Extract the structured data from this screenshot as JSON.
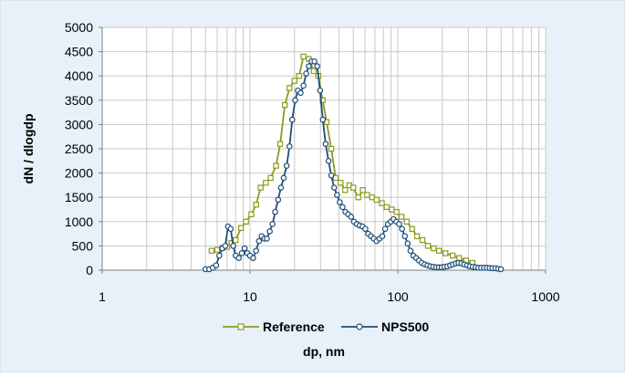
{
  "chart_data": {
    "type": "line",
    "title": "",
    "xlabel": "dp, nm",
    "ylabel": "dN / dlogdp",
    "xscale": "log",
    "xlim": [
      1,
      1000
    ],
    "ylim": [
      0,
      5000
    ],
    "x_tick_labels": [
      "1",
      "10",
      "100",
      "1000"
    ],
    "y_tick_labels": [
      "0",
      "500",
      "1000",
      "1500",
      "2000",
      "2500",
      "3000",
      "3500",
      "4000",
      "4500",
      "5000"
    ],
    "grid": true,
    "legend_position": "bottom",
    "background_color": "#e8f1f9",
    "series": [
      {
        "name": "Reference",
        "color": "#8c9a1e",
        "marker": "square",
        "points": [
          [
            5.5,
            400
          ],
          [
            6.0,
            420
          ],
          [
            6.5,
            460
          ],
          [
            7.0,
            480
          ],
          [
            7.5,
            560
          ],
          [
            8.0,
            620
          ],
          [
            8.7,
            870
          ],
          [
            9.4,
            1000
          ],
          [
            10.2,
            1150
          ],
          [
            11.0,
            1350
          ],
          [
            11.8,
            1700
          ],
          [
            12.8,
            1800
          ],
          [
            13.8,
            1900
          ],
          [
            15.0,
            2150
          ],
          [
            16.0,
            2600
          ],
          [
            17.2,
            3400
          ],
          [
            18.5,
            3750
          ],
          [
            20.0,
            3900
          ],
          [
            21.5,
            4000
          ],
          [
            23.0,
            4400
          ],
          [
            25.0,
            4350
          ],
          [
            27.0,
            4100
          ],
          [
            29.0,
            4000
          ],
          [
            31.0,
            3500
          ],
          [
            33.0,
            3050
          ],
          [
            35.5,
            2500
          ],
          [
            38.0,
            1900
          ],
          [
            41.0,
            1800
          ],
          [
            44.0,
            1650
          ],
          [
            47.0,
            1750
          ],
          [
            50.0,
            1700
          ],
          [
            54.0,
            1500
          ],
          [
            58.0,
            1650
          ],
          [
            62.0,
            1550
          ],
          [
            67.0,
            1500
          ],
          [
            72.0,
            1450
          ],
          [
            78.0,
            1380
          ],
          [
            84.0,
            1300
          ],
          [
            91.0,
            1250
          ],
          [
            98.0,
            1200
          ],
          [
            106.0,
            1100
          ],
          [
            115.0,
            1000
          ],
          [
            125.0,
            850
          ],
          [
            135.0,
            700
          ],
          [
            147.0,
            620
          ],
          [
            160.0,
            500
          ],
          [
            175.0,
            450
          ],
          [
            190.0,
            400
          ],
          [
            210.0,
            350
          ],
          [
            235.0,
            300
          ],
          [
            260.0,
            250
          ],
          [
            290.0,
            200
          ],
          [
            320.0,
            150
          ]
        ]
      },
      {
        "name": "NPS500",
        "color": "#1f4e79",
        "marker": "circle",
        "points": [
          [
            5.0,
            20
          ],
          [
            5.3,
            20
          ],
          [
            5.6,
            50
          ],
          [
            5.9,
            100
          ],
          [
            6.2,
            300
          ],
          [
            6.5,
            450
          ],
          [
            6.8,
            500
          ],
          [
            7.1,
            900
          ],
          [
            7.4,
            850
          ],
          [
            7.7,
            500
          ],
          [
            8.0,
            300
          ],
          [
            8.4,
            250
          ],
          [
            8.8,
            350
          ],
          [
            9.2,
            450
          ],
          [
            9.6,
            350
          ],
          [
            10.0,
            300
          ],
          [
            10.5,
            250
          ],
          [
            11.0,
            400
          ],
          [
            11.5,
            600
          ],
          [
            12.0,
            700
          ],
          [
            12.5,
            650
          ],
          [
            13.0,
            650
          ],
          [
            13.6,
            800
          ],
          [
            14.2,
            950
          ],
          [
            14.8,
            1200
          ],
          [
            15.5,
            1450
          ],
          [
            16.2,
            1700
          ],
          [
            16.9,
            1900
          ],
          [
            17.7,
            2150
          ],
          [
            18.5,
            2550
          ],
          [
            19.3,
            3100
          ],
          [
            20.2,
            3500
          ],
          [
            21.1,
            3700
          ],
          [
            22.0,
            3650
          ],
          [
            23.0,
            3800
          ],
          [
            24.0,
            4050
          ],
          [
            25.0,
            4200
          ],
          [
            26.1,
            4300
          ],
          [
            27.3,
            4300
          ],
          [
            28.5,
            4200
          ],
          [
            29.8,
            3700
          ],
          [
            31.1,
            3100
          ],
          [
            32.5,
            2600
          ],
          [
            34.0,
            2250
          ],
          [
            35.5,
            1950
          ],
          [
            37.1,
            1700
          ],
          [
            38.8,
            1550
          ],
          [
            40.5,
            1400
          ],
          [
            42.3,
            1300
          ],
          [
            44.2,
            1200
          ],
          [
            46.2,
            1150
          ],
          [
            48.3,
            1100
          ],
          [
            50.5,
            1000
          ],
          [
            52.8,
            950
          ],
          [
            55.2,
            920
          ],
          [
            57.7,
            900
          ],
          [
            60.3,
            850
          ],
          [
            63.0,
            750
          ],
          [
            65.8,
            700
          ],
          [
            68.8,
            650
          ],
          [
            71.9,
            600
          ],
          [
            75.1,
            650
          ],
          [
            78.5,
            700
          ],
          [
            82.0,
            850
          ],
          [
            85.7,
            950
          ],
          [
            89.6,
            1000
          ],
          [
            93.6,
            1050
          ],
          [
            97.8,
            1000
          ],
          [
            102.2,
            950
          ],
          [
            106.8,
            850
          ],
          [
            111.6,
            700
          ],
          [
            116.6,
            550
          ],
          [
            121.9,
            400
          ],
          [
            127.4,
            300
          ],
          [
            133.1,
            250
          ],
          [
            139.1,
            200
          ],
          [
            145.4,
            150
          ],
          [
            152.0,
            120
          ],
          [
            158.8,
            100
          ],
          [
            166.0,
            80
          ],
          [
            173.4,
            70
          ],
          [
            181.2,
            60
          ],
          [
            189.4,
            60
          ],
          [
            197.9,
            60
          ],
          [
            206.8,
            70
          ],
          [
            216.1,
            80
          ],
          [
            225.8,
            100
          ],
          [
            236.0,
            120
          ],
          [
            246.6,
            140
          ],
          [
            257.7,
            150
          ],
          [
            269.3,
            140
          ],
          [
            281.4,
            120
          ],
          [
            294.1,
            100
          ],
          [
            307.3,
            80
          ],
          [
            321.2,
            70
          ],
          [
            335.6,
            60
          ],
          [
            350.7,
            50
          ],
          [
            366.5,
            50
          ],
          [
            383.0,
            50
          ],
          [
            400.3,
            50
          ],
          [
            418.3,
            45
          ],
          [
            437.1,
            40
          ],
          [
            456.8,
            40
          ],
          [
            477.4,
            30
          ],
          [
            498.9,
            20
          ]
        ]
      }
    ]
  }
}
